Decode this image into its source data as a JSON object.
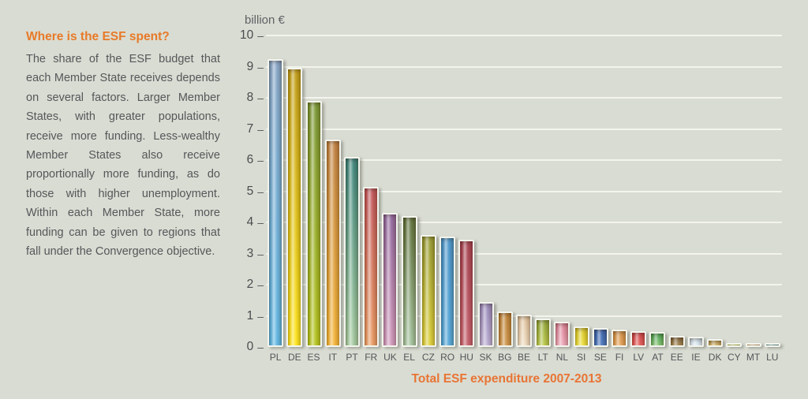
{
  "background_color": "#d9dcd2",
  "sidebar": {
    "heading": "Where is the ESF spent?",
    "heading_color": "#e87a28",
    "body": "The share of the ESF budget that each Member State receives depends on several factors. Larger Member States, with greater populations, receive more funding. Less-wealthy Member States also receive proportionally more funding, as do those with higher unemployment. Within each Member State, more funding can be given to regions that fall under the Convergence objective."
  },
  "chart_data": {
    "type": "bar",
    "title": "Total ESF expenditure 2007-2013",
    "title_color": "#e87435",
    "unit_label": "billion €",
    "categories": [
      "PL",
      "DE",
      "ES",
      "IT",
      "PT",
      "FR",
      "UK",
      "EL",
      "CZ",
      "RO",
      "HU",
      "SK",
      "BG",
      "BE",
      "LT",
      "NL",
      "SI",
      "SE",
      "FI",
      "LV",
      "AT",
      "EE",
      "IE",
      "DK",
      "CY",
      "MT",
      "LU"
    ],
    "values": [
      9.25,
      8.95,
      7.9,
      6.65,
      6.1,
      5.15,
      4.3,
      4.2,
      3.6,
      3.55,
      3.45,
      1.45,
      1.15,
      1.05,
      0.9,
      0.8,
      0.65,
      0.6,
      0.55,
      0.5,
      0.48,
      0.35,
      0.33,
      0.25,
      0.12,
      0.1,
      0.05
    ],
    "bar_colors": [
      {
        "top": "#7f9fc2",
        "bottom": "#54b2e2"
      },
      {
        "top": "#bc970b",
        "bottom": "#ffe410"
      },
      {
        "top": "#71902a",
        "bottom": "#b2c212"
      },
      {
        "top": "#bb7a38",
        "bottom": "#f4b12c"
      },
      {
        "top": "#2f7c72",
        "bottom": "#a0c89a"
      },
      {
        "top": "#bc4b50",
        "bottom": "#e9975c"
      },
      {
        "top": "#8a5f97",
        "bottom": "#ce93b8"
      },
      {
        "top": "#55682e",
        "bottom": "#9fc19a"
      },
      {
        "top": "#8f9327",
        "bottom": "#dcce2f"
      },
      {
        "top": "#3e8ec6",
        "bottom": "#4aa2d6"
      },
      {
        "top": "#a13646",
        "bottom": "#c25663"
      },
      {
        "top": "#9181b5",
        "bottom": "#b6a8d0"
      },
      {
        "top": "#b87a2b",
        "bottom": "#ca8d3e"
      },
      {
        "top": "#dcbc95",
        "bottom": "#edd8ba"
      },
      {
        "top": "#8aa02f",
        "bottom": "#b5c53e"
      },
      {
        "top": "#d8798f",
        "bottom": "#ea9fb0"
      },
      {
        "top": "#d5c41d",
        "bottom": "#ebdc2e"
      },
      {
        "top": "#2b58a5",
        "bottom": "#3e6eb8"
      },
      {
        "top": "#ce8a3c",
        "bottom": "#e29b4c"
      },
      {
        "top": "#cc3a3e",
        "bottom": "#e35552"
      },
      {
        "top": "#3f9e49",
        "bottom": "#79bd68"
      },
      {
        "top": "#7f6134",
        "bottom": "#9c7f49"
      },
      {
        "top": "#c2d7e5",
        "bottom": "#dceaf2"
      },
      {
        "top": "#bd9c4e",
        "bottom": "#d2b264"
      },
      {
        "top": "#aebe2e",
        "bottom": "#c3d23e"
      },
      {
        "top": "#d6a266",
        "bottom": "#e4b678"
      },
      {
        "top": "#4e9899",
        "bottom": "#62a8a8"
      }
    ],
    "ylim": [
      0,
      10
    ],
    "yticks": [
      0,
      1,
      2,
      3,
      4,
      5,
      6,
      7,
      8,
      9,
      10
    ],
    "grid": "horizontal-white-lines",
    "legend": "none",
    "xlabel": "",
    "ylabel": "billion €"
  }
}
